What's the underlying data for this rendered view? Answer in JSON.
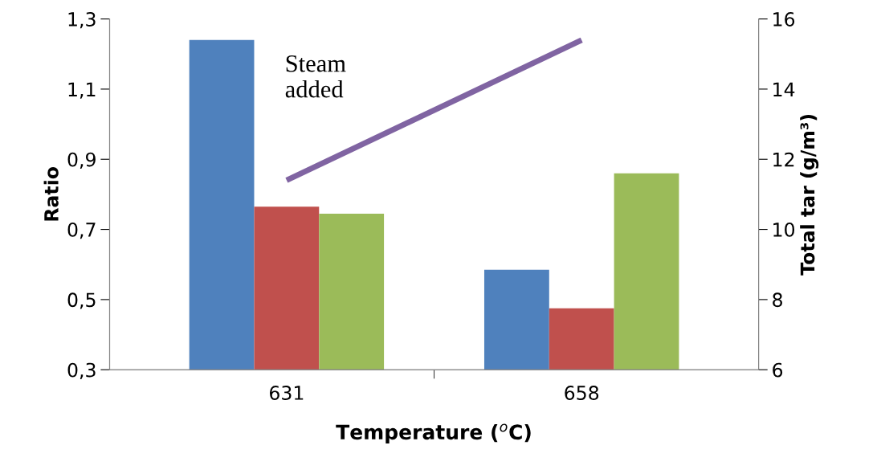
{
  "chart_data": {
    "type": "bar",
    "xlabel": "Temperature ($^{o}$C)",
    "ylabel": "Ratio",
    "y2label": "Total tar (g/m³)",
    "categories": [
      "631",
      "658"
    ],
    "series": [
      {
        "color": "#4f81bd",
        "values": [
          1.24,
          0.585
        ]
      },
      {
        "color": "#c0504d",
        "values": [
          0.765,
          0.475
        ]
      },
      {
        "color": "#9bbb59",
        "values": [
          0.745,
          0.86
        ]
      },
      {
        "type": "line",
        "axis": "y2",
        "color": "#8064a2",
        "values": [
          11.4,
          15.4
        ]
      }
    ],
    "ylim": [
      0.3,
      1.3
    ],
    "yticks": [
      {
        "value": 0.3,
        "label": "0,3"
      },
      {
        "value": 0.5,
        "label": "0,5"
      },
      {
        "value": 0.7,
        "label": "0,7"
      },
      {
        "value": 0.9,
        "label": "0,9"
      },
      {
        "value": 1.1,
        "label": "1,1"
      },
      {
        "value": 1.3,
        "label": "1,3"
      }
    ],
    "y2lim": [
      6,
      16
    ],
    "y2ticks": [
      6,
      8,
      10,
      12,
      14,
      16
    ],
    "annotations": [
      "Steam\nadded"
    ],
    "grid": false,
    "legend": false
  }
}
